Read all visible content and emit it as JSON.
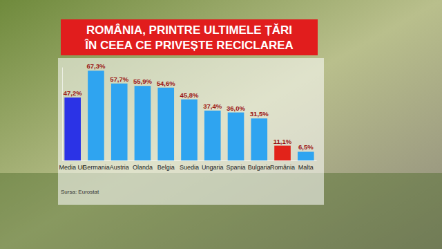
{
  "chart_data": {
    "type": "bar",
    "title": [
      "ROMÂNIA, PRINTRE ULTIMELE ȚĂRI",
      "ÎN CEEA CE PRIVEȘTE RECICLAREA"
    ],
    "source": "Sursa: Eurostat",
    "categories": [
      "Media UE",
      "Germania",
      "Austria",
      "Olanda",
      "Belgia",
      "Suedia",
      "Ungaria",
      "Spania",
      "Bulgaria",
      "România",
      "Malta"
    ],
    "values": [
      47.2,
      67.3,
      57.7,
      55.9,
      54.6,
      45.8,
      37.4,
      36.0,
      31.5,
      11.1,
      6.5
    ],
    "value_labels": [
      "47,2%",
      "67,3%",
      "57,7%",
      "55,9%",
      "54,6%",
      "45,8%",
      "37,4%",
      "36,0%",
      "31,5%",
      "11,1%",
      "6,5%"
    ],
    "colors": [
      "#2b33e6",
      "#2fa4f0",
      "#2fa4f0",
      "#2fa4f0",
      "#2fa4f0",
      "#2fa4f0",
      "#2fa4f0",
      "#2fa4f0",
      "#2fa4f0",
      "#e2231a",
      "#2fa4f0"
    ],
    "ylim": [
      0,
      70
    ],
    "yticks": [],
    "grid": false,
    "data_labels": true,
    "tick_labels": "x"
  }
}
